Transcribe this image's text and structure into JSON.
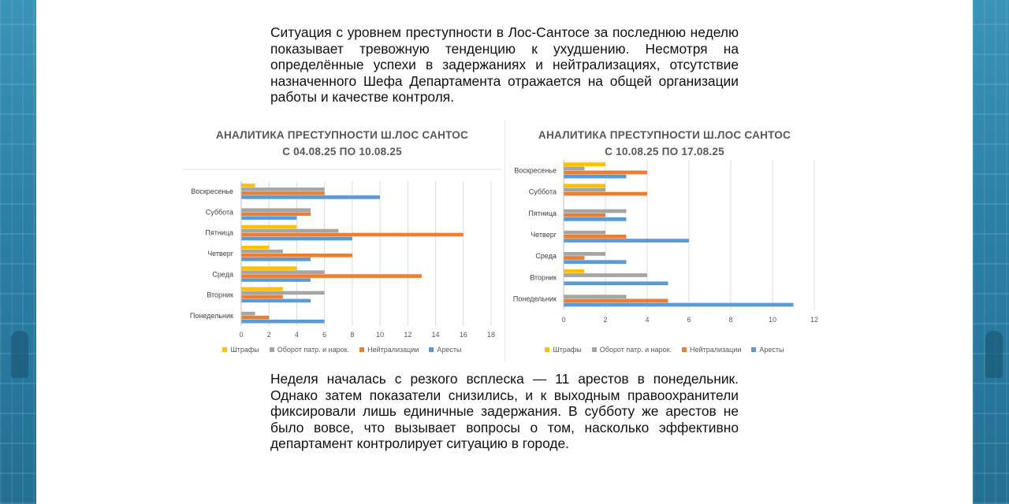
{
  "colors": {
    "fines": "#ffc000",
    "drugs": "#a5a5a5",
    "neutral": "#ed7d31",
    "arrests": "#5b9bd5"
  },
  "paragraphs": {
    "top": "Ситуация с уровнем преступности в Лос-Сантосе за последнюю неделю показывает тревожную тенденцию к ухудшению. Несмотря на определённые успехи в задержаниях и нейтрализациях, отсутствие назначенного Шефа Департамента отражается на общей организации работы и качестве контроля.",
    "bottom": "Неделя началась с резкого всплеска — 11 арестов в понедельник. Однако затем показатели снизились, и к выходным правоохранители фиксировали лишь единичные задержания. В субботу же арестов не было вовсе, что вызывает вопросы о том, насколько эффективно департамент контролирует ситуацию в городе."
  },
  "chart_data": [
    {
      "type": "bar",
      "orientation": "horizontal",
      "title": "АНАЛИТИКА ПРЕСТУПНОСТИ Ш.ЛОС САНТОС",
      "subtitle": "С 04.08.25 ПО 10.08.25",
      "categories": [
        "Воскресенье",
        "Суббота",
        "Пятница",
        "Четверг",
        "Среда",
        "Вторник",
        "Понедельник"
      ],
      "xlim": [
        0,
        18
      ],
      "xticks": [
        "0",
        "2",
        "4",
        "6",
        "8",
        "10",
        "12",
        "14",
        "16",
        "18"
      ],
      "grid": true,
      "legend_position": "bottom",
      "series": [
        {
          "name": "Штрафы",
          "color_key": "fines",
          "values": [
            1,
            0,
            4,
            2,
            4,
            3,
            0
          ]
        },
        {
          "name": "Оборот патр. и нарок.",
          "color_key": "drugs",
          "values": [
            6,
            5,
            7,
            3,
            6,
            6,
            1
          ]
        },
        {
          "name": "Нейтрализации",
          "color_key": "neutral",
          "values": [
            6,
            5,
            16,
            8,
            13,
            3,
            2
          ]
        },
        {
          "name": "Аресты",
          "color_key": "arrests",
          "values": [
            10,
            4,
            8,
            5,
            5,
            5,
            6
          ]
        }
      ]
    },
    {
      "type": "bar",
      "orientation": "horizontal",
      "title": "АНАЛИТИКА ПРЕСТУПНОСТИ Ш.ЛОС САНТОС",
      "subtitle": "С 10.08.25 ПО 17.08.25",
      "categories": [
        "Воскресенье",
        "Суббота",
        "Пятница",
        "Четверг",
        "Среда",
        "Вторник",
        "Понедельник"
      ],
      "xlim": [
        0,
        12
      ],
      "xticks": [
        "0",
        "2",
        "4",
        "6",
        "8",
        "10",
        "12"
      ],
      "grid": true,
      "legend_position": "bottom",
      "series": [
        {
          "name": "Штрафы",
          "color_key": "fines",
          "values": [
            2,
            2,
            0,
            0,
            0,
            1,
            0
          ]
        },
        {
          "name": "Оборот патр. и нарок.",
          "color_key": "drugs",
          "values": [
            1,
            2,
            3,
            2,
            2,
            4,
            3
          ]
        },
        {
          "name": "Нейтрализации",
          "color_key": "neutral",
          "values": [
            4,
            4,
            2,
            3,
            1,
            0,
            5
          ]
        },
        {
          "name": "Аресты",
          "color_key": "arrests",
          "values": [
            3,
            0,
            3,
            6,
            3,
            5,
            11
          ]
        }
      ]
    }
  ]
}
